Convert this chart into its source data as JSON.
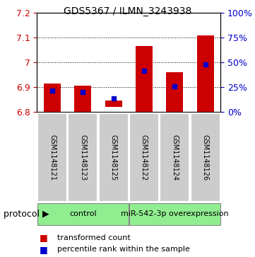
{
  "title": "GDS5367 / ILMN_3243938",
  "samples": [
    "GSM1148121",
    "GSM1148123",
    "GSM1148125",
    "GSM1148122",
    "GSM1148124",
    "GSM1148126"
  ],
  "bar_bottom": [
    6.8,
    6.8,
    6.82,
    6.8,
    6.8,
    6.8
  ],
  "bar_top": [
    6.915,
    6.905,
    6.845,
    7.065,
    6.96,
    7.108
  ],
  "blue_val": [
    6.885,
    6.88,
    6.855,
    6.965,
    6.903,
    6.992
  ],
  "groups": [
    {
      "label": "control",
      "cols": [
        0,
        1,
        2
      ]
    },
    {
      "label": "miR-542-3p overexpression",
      "cols": [
        3,
        4,
        5
      ]
    }
  ],
  "ylim_left": [
    6.8,
    7.2
  ],
  "ylim_right": [
    0,
    100
  ],
  "yticks_left": [
    6.8,
    6.9,
    7.0,
    7.1,
    7.2
  ],
  "yticks_right": [
    0,
    25,
    50,
    75,
    100
  ],
  "bar_color": "#CC0000",
  "blue_color": "#0000CC",
  "bar_width": 0.55,
  "plot_bg": "#ffffff",
  "sample_box_color": "#cccccc",
  "group_color": "#90EE90",
  "title_fontsize": 10,
  "axis_label_fontsize": 9,
  "sample_fontsize": 7,
  "group_fontsize": 8,
  "legend_fontsize": 8
}
